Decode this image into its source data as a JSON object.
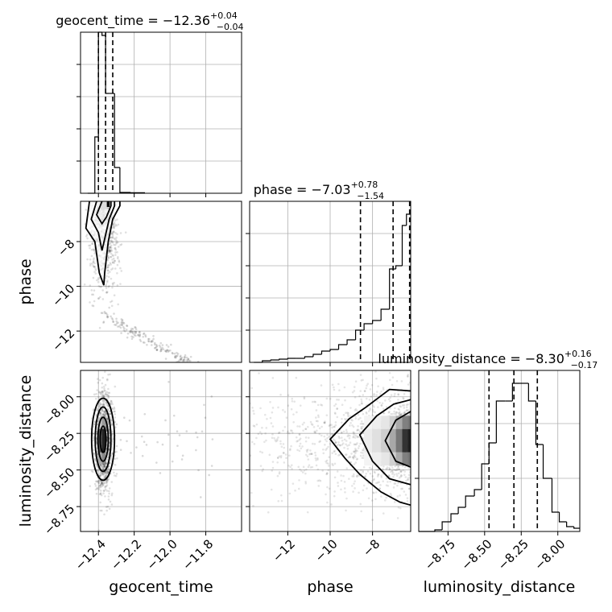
{
  "chart_data": {
    "type": "corner",
    "parameters": [
      "geocent_time",
      "phase",
      "luminosity_distance"
    ],
    "grid": true,
    "colors": {
      "line": "#000000",
      "grid": "#b0b0b0",
      "points": "#000000"
    },
    "panels": [
      {
        "id": "geocent_time-hist",
        "type": "histogram",
        "row": 0,
        "col": 0,
        "title_main": "geocent_time = −12.36",
        "title_sup": "+0.04",
        "title_sub": "−0.04",
        "xlim": [
          -12.5,
          -11.6
        ],
        "xticks": [
          -12.4,
          -12.2,
          -12.0,
          -11.8
        ],
        "yticks": [
          0.2,
          0.4,
          0.6,
          0.8
        ],
        "quantiles": [
          -12.4,
          -12.36,
          -12.32
        ],
        "bins": [
          [
            -12.46,
            -12.42,
            0.0
          ],
          [
            -12.42,
            -12.4,
            0.35
          ],
          [
            -12.4,
            -12.38,
            1.0
          ],
          [
            -12.38,
            -12.36,
            0.98
          ],
          [
            -12.36,
            -12.34,
            0.62
          ],
          [
            -12.34,
            -12.31,
            0.62
          ],
          [
            -12.31,
            -12.28,
            0.16
          ],
          [
            -12.28,
            -12.22,
            0.005
          ],
          [
            -12.22,
            -12.14,
            0.003
          ]
        ]
      },
      {
        "id": "phase-vs-geocent_time",
        "type": "scatter-density",
        "row": 1,
        "col": 0,
        "xlim": [
          -12.5,
          -11.6
        ],
        "ylim": [
          -13.4,
          -6.2
        ],
        "yticks": [
          -12,
          -10,
          -8
        ],
        "ytick_labels": [
          "−12",
          "−10",
          "−8"
        ],
        "ylabel": "phase"
      },
      {
        "id": "phase-hist",
        "type": "histogram",
        "row": 1,
        "col": 1,
        "title_main": "phase = −7.03",
        "title_sup": "+0.78",
        "title_sub": "−1.54",
        "xlim": [
          -13.8,
          -6.2
        ],
        "xticks": [
          -12,
          -10,
          -8
        ],
        "yticks": [
          0.2,
          0.4,
          0.6,
          0.8
        ],
        "quantiles": [
          -8.57,
          -7.03,
          -6.25
        ],
        "bins": [
          [
            -13.6,
            -13.2,
            0.0
          ],
          [
            -13.2,
            -12.8,
            0.01
          ],
          [
            -12.8,
            -12.4,
            0.015
          ],
          [
            -12.4,
            -12.0,
            0.02
          ],
          [
            -12.0,
            -11.6,
            0.025
          ],
          [
            -11.6,
            -11.2,
            0.025
          ],
          [
            -11.2,
            -10.8,
            0.035
          ],
          [
            -10.8,
            -10.4,
            0.05
          ],
          [
            -10.4,
            -10.0,
            0.07
          ],
          [
            -10.0,
            -9.6,
            0.08
          ],
          [
            -9.6,
            -9.2,
            0.11
          ],
          [
            -9.2,
            -8.8,
            0.14
          ],
          [
            -8.8,
            -8.4,
            0.2
          ],
          [
            -8.4,
            -8.0,
            0.24
          ],
          [
            -8.0,
            -7.6,
            0.26
          ],
          [
            -7.6,
            -7.2,
            0.33
          ],
          [
            -7.2,
            -6.9,
            0.58
          ],
          [
            -6.9,
            -6.6,
            0.6
          ],
          [
            -6.6,
            -6.4,
            0.85
          ],
          [
            -6.4,
            -6.2,
            0.92
          ]
        ]
      },
      {
        "id": "luminosity_distance-vs-geocent_time",
        "type": "scatter-density",
        "row": 2,
        "col": 0,
        "xlim": [
          -12.5,
          -11.6
        ],
        "ylim": [
          -8.92,
          -7.82
        ],
        "xticks": [
          -12.4,
          -12.2,
          -12.0,
          -11.8
        ],
        "xtick_labels": [
          "−12.4",
          "−12.2",
          "−12.0",
          "−11.8"
        ],
        "yticks": [
          -8.75,
          -8.5,
          -8.25,
          -8.0
        ],
        "ytick_labels": [
          "−8.75",
          "−8.50",
          "−8.25",
          "−8.00"
        ],
        "xlabel": "geocent_time",
        "ylabel": "luminosity_distance"
      },
      {
        "id": "luminosity_distance-vs-phase",
        "type": "scatter-density",
        "row": 2,
        "col": 1,
        "xlim": [
          -13.8,
          -6.2
        ],
        "ylim": [
          -8.92,
          -7.82
        ],
        "xticks": [
          -12,
          -10,
          -8
        ],
        "xtick_labels": [
          "−12",
          "−10",
          "−8"
        ],
        "yticks": [
          -8.75,
          -8.5,
          -8.25,
          -8.0
        ],
        "xlabel": "phase"
      },
      {
        "id": "luminosity_distance-hist",
        "type": "histogram",
        "row": 2,
        "col": 2,
        "title_main": "luminosity_distance = −8.30",
        "title_sup": "+0.16",
        "title_sub": "−0.17",
        "xlim": [
          -8.95,
          -7.85
        ],
        "xticks": [
          -8.75,
          -8.5,
          -8.25,
          -8.0
        ],
        "xtick_labels": [
          "−8.75",
          "−8.50",
          "−8.25",
          "−8.00"
        ],
        "yticks": [
          0.33,
          0.67
        ],
        "xlabel": "luminosity_distance",
        "quantiles": [
          -8.47,
          -8.3,
          -8.14
        ],
        "bins": [
          [
            -8.95,
            -8.84,
            0.0
          ],
          [
            -8.84,
            -8.79,
            0.01
          ],
          [
            -8.79,
            -8.73,
            0.06
          ],
          [
            -8.73,
            -8.68,
            0.11
          ],
          [
            -8.68,
            -8.63,
            0.15
          ],
          [
            -8.63,
            -8.57,
            0.22
          ],
          [
            -8.57,
            -8.52,
            0.26
          ],
          [
            -8.52,
            -8.47,
            0.42
          ],
          [
            -8.47,
            -8.42,
            0.55
          ],
          [
            -8.42,
            -8.36,
            0.81
          ],
          [
            -8.36,
            -8.31,
            0.81
          ],
          [
            -8.31,
            -8.26,
            0.92
          ],
          [
            -8.26,
            -8.2,
            0.92
          ],
          [
            -8.2,
            -8.15,
            0.81
          ],
          [
            -8.15,
            -8.1,
            0.54
          ],
          [
            -8.1,
            -8.04,
            0.33
          ],
          [
            -8.04,
            -7.99,
            0.12
          ],
          [
            -7.99,
            -7.94,
            0.06
          ],
          [
            -7.94,
            -7.89,
            0.03
          ],
          [
            -7.89,
            -7.85,
            0.02
          ]
        ]
      }
    ]
  }
}
